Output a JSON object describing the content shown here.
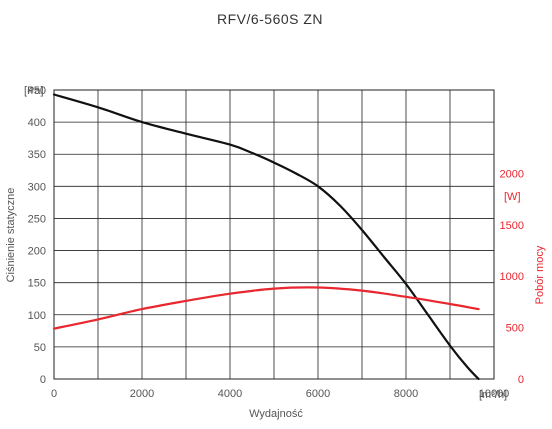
{
  "chart_data": {
    "type": "line",
    "title": "RFV/6-560S ZN",
    "xlabel": "Wydajność",
    "x_unit": "[m³/h]",
    "ylabel_left": "Ciśnienie statyczne",
    "y_unit_left": "[Pa]",
    "ylabel_right": "Pobór mocy",
    "y_unit_right": "[W]",
    "xlim": [
      0,
      10000
    ],
    "ylim_left": [
      0,
      450
    ],
    "ylim_right": [
      0,
      2500
    ],
    "x_ticks": [
      "0",
      "2000",
      "4000",
      "6000",
      "8000",
      "10000"
    ],
    "y_ticks_left": [
      "0",
      "50",
      "100",
      "150",
      "200",
      "250",
      "300",
      "350",
      "400",
      "450"
    ],
    "y_ticks_right": [
      "0",
      "500",
      "1000",
      "1500",
      "2000"
    ],
    "grid": true,
    "colors": {
      "pressure": "#111111",
      "power": "#e8272e",
      "grid": "#222222"
    },
    "series": [
      {
        "axis": "left",
        "color": "#111111",
        "points": [
          [
            0,
            443
          ],
          [
            1000,
            423
          ],
          [
            2000,
            400
          ],
          [
            3000,
            382
          ],
          [
            4000,
            365
          ],
          [
            4500,
            352
          ],
          [
            5000,
            337
          ],
          [
            5500,
            320
          ],
          [
            6000,
            300
          ],
          [
            6500,
            270
          ],
          [
            7000,
            232
          ],
          [
            7500,
            190
          ],
          [
            8000,
            148
          ],
          [
            8500,
            100
          ],
          [
            9000,
            52
          ],
          [
            9400,
            18
          ],
          [
            9650,
            0
          ]
        ]
      },
      {
        "axis": "right",
        "color": "#e8272e",
        "points": [
          [
            0,
            490
          ],
          [
            1000,
            580
          ],
          [
            2000,
            680
          ],
          [
            3000,
            760
          ],
          [
            4000,
            830
          ],
          [
            5000,
            880
          ],
          [
            6000,
            890
          ],
          [
            7000,
            860
          ],
          [
            8000,
            800
          ],
          [
            9000,
            730
          ],
          [
            9650,
            680
          ]
        ]
      }
    ]
  }
}
